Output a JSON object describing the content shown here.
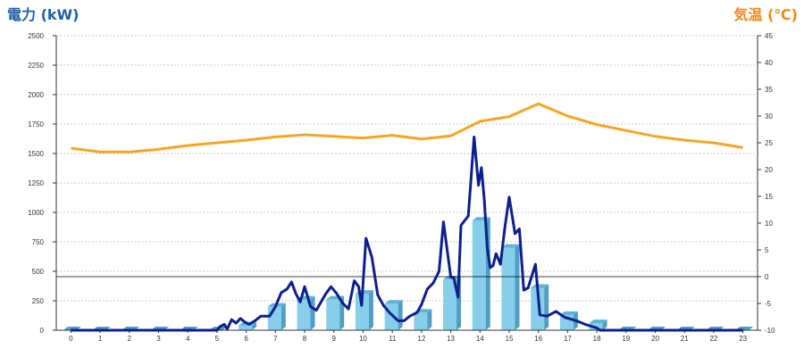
{
  "chart_data": {
    "type": "bar",
    "left_axis_title": "電力 (kW)",
    "right_axis_title": "気温 (℃)",
    "x_ticks": [
      "0",
      "1",
      "2",
      "3",
      "4",
      "5",
      "6",
      "7",
      "8",
      "9",
      "10",
      "11",
      "12",
      "13",
      "14",
      "15",
      "16",
      "17",
      "18",
      "19",
      "20",
      "21",
      "22",
      "23"
    ],
    "left_ylim": [
      0,
      2500
    ],
    "left_ticks": [
      0,
      250,
      500,
      750,
      1000,
      1250,
      1500,
      1750,
      2000,
      2250,
      2500
    ],
    "right_ylim": [
      -10,
      45
    ],
    "right_ticks": [
      -10,
      -5,
      0,
      5,
      10,
      15,
      20,
      25,
      30,
      35,
      40,
      45
    ],
    "grid": true,
    "zero_line_right": 0,
    "colors": {
      "bars": "#87ceeb",
      "bars_dark": "#4f9fc4",
      "power_line": "#0d1f8c",
      "temp_line": "#f5a623",
      "left_title": "#1f5fa8",
      "right_title": "#ee8a1a"
    },
    "series": [
      {
        "axis": "left",
        "kind": "bar",
        "values": [
          0,
          0,
          0,
          0,
          0,
          0,
          40,
          200,
          260,
          260,
          310,
          225,
          150,
          430,
          930,
          700,
          360,
          130,
          60,
          0,
          0,
          0,
          0,
          0
        ]
      },
      {
        "axis": "left",
        "kind": "line",
        "points": [
          [
            0,
            0
          ],
          [
            1,
            0
          ],
          [
            2,
            0
          ],
          [
            3,
            0
          ],
          [
            4,
            0
          ],
          [
            5,
            0
          ],
          [
            5.1,
            30
          ],
          [
            5.25,
            50
          ],
          [
            5.35,
            10
          ],
          [
            5.5,
            90
          ],
          [
            5.65,
            60
          ],
          [
            5.8,
            100
          ],
          [
            5.95,
            70
          ],
          [
            6.1,
            50
          ],
          [
            6.3,
            80
          ],
          [
            6.5,
            120
          ],
          [
            6.8,
            120
          ],
          [
            7,
            200
          ],
          [
            7.2,
            320
          ],
          [
            7.4,
            350
          ],
          [
            7.55,
            410
          ],
          [
            7.7,
            310
          ],
          [
            7.85,
            240
          ],
          [
            8,
            370
          ],
          [
            8.2,
            200
          ],
          [
            8.4,
            170
          ],
          [
            8.7,
            300
          ],
          [
            8.9,
            370
          ],
          [
            9.1,
            310
          ],
          [
            9.3,
            230
          ],
          [
            9.5,
            180
          ],
          [
            9.7,
            420
          ],
          [
            9.85,
            370
          ],
          [
            9.95,
            210
          ],
          [
            10.1,
            780
          ],
          [
            10.3,
            620
          ],
          [
            10.5,
            300
          ],
          [
            10.7,
            210
          ],
          [
            10.9,
            150
          ],
          [
            11.2,
            80
          ],
          [
            11.4,
            80
          ],
          [
            11.6,
            120
          ],
          [
            11.85,
            150
          ],
          [
            12,
            220
          ],
          [
            12.2,
            350
          ],
          [
            12.4,
            400
          ],
          [
            12.6,
            500
          ],
          [
            12.75,
            920
          ],
          [
            12.85,
            730
          ],
          [
            13,
            450
          ],
          [
            13.1,
            450
          ],
          [
            13.25,
            280
          ],
          [
            13.35,
            890
          ],
          [
            13.6,
            970
          ],
          [
            13.8,
            1640
          ],
          [
            13.95,
            1230
          ],
          [
            14.05,
            1380
          ],
          [
            14.15,
            1100
          ],
          [
            14.25,
            700
          ],
          [
            14.35,
            530
          ],
          [
            14.45,
            550
          ],
          [
            14.55,
            650
          ],
          [
            14.7,
            560
          ],
          [
            14.85,
            870
          ],
          [
            15,
            1130
          ],
          [
            15.2,
            820
          ],
          [
            15.35,
            860
          ],
          [
            15.5,
            340
          ],
          [
            15.65,
            360
          ],
          [
            15.9,
            560
          ],
          [
            16.05,
            130
          ],
          [
            16.3,
            120
          ],
          [
            16.6,
            160
          ],
          [
            16.9,
            110
          ],
          [
            17.3,
            80
          ],
          [
            17.6,
            50
          ],
          [
            18,
            20
          ],
          [
            18.1,
            0
          ],
          [
            19,
            0
          ],
          [
            20,
            0
          ],
          [
            21,
            0
          ],
          [
            22,
            0
          ],
          [
            23,
            0
          ]
        ]
      },
      {
        "axis": "right",
        "kind": "line",
        "values": [
          24,
          23.3,
          23.3,
          23.8,
          24.5,
          25,
          25.5,
          26.1,
          26.5,
          26.2,
          25.9,
          26.4,
          25.7,
          26.3,
          29,
          29.9,
          32.3,
          30,
          28.4,
          27.3,
          26.2,
          25.5,
          25,
          24.1
        ]
      }
    ]
  }
}
